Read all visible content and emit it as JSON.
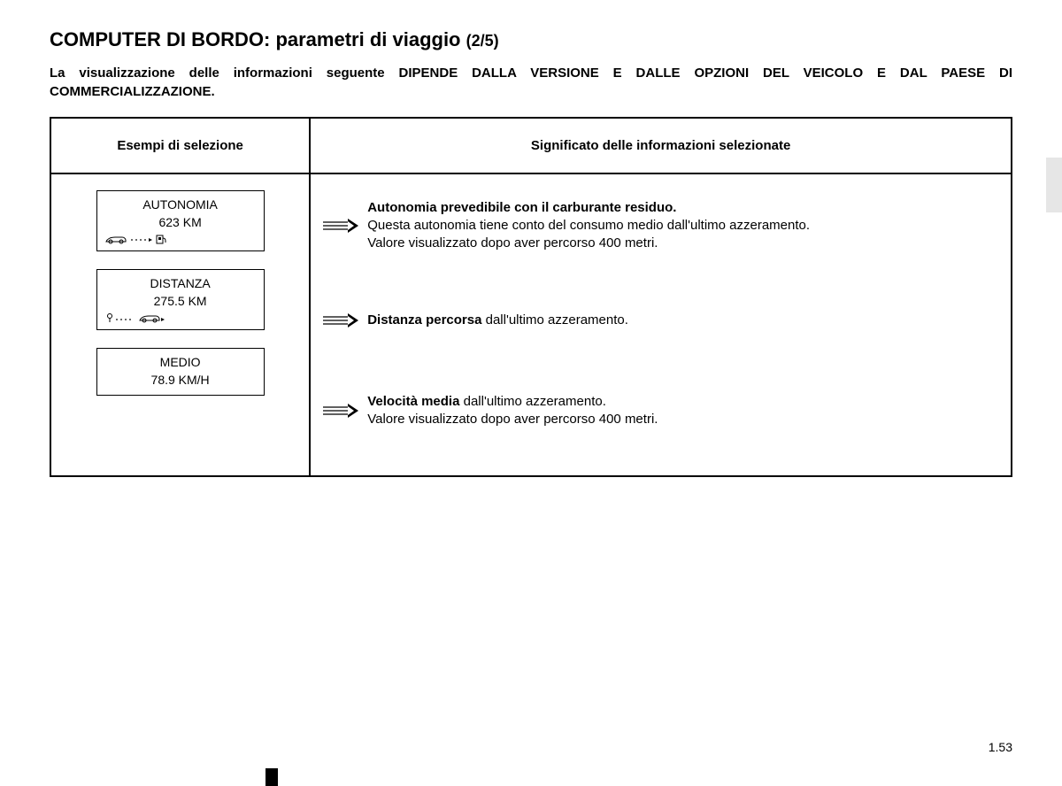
{
  "title": {
    "main": "COMPUTER DI BORDO: parametri di viaggio",
    "page_indicator": "(2/5)"
  },
  "subtitle": "La visualizzazione delle informazioni seguente DIPENDE DALLA VERSIONE E DALLE OPZIONI DEL VEICOLO E DAL PAESE DI COMMERCIALIZZAZIONE.",
  "table": {
    "header_left": "Esempi di selezione",
    "header_right": "Significato delle informazioni selezionate",
    "rows": [
      {
        "selection": {
          "label": "AUTONOMIA",
          "value": "623 KM",
          "icon": "car-to-pump"
        },
        "meaning_bold": "Autonomia prevedibile con il carburante residuo.",
        "meaning_rest": "Questa autonomia tiene conto del consumo medio dall'ultimo azzeramento.\nValore visualizzato dopo aver percorso 400 metri."
      },
      {
        "selection": {
          "label": "DISTANZA",
          "value": "275.5 KM",
          "icon": "pin-to-car"
        },
        "meaning_bold": "Distanza percorsa",
        "meaning_rest": " dall'ultimo azzeramento."
      },
      {
        "selection": {
          "label": "MEDIO",
          "value": "78.9 KM/H",
          "icon": ""
        },
        "meaning_bold": "Velocità media",
        "meaning_rest": " dall'ultimo azzeramento.\nValore visualizzato dopo aver percorso 400 metri."
      }
    ]
  },
  "page_number": "1.53",
  "colors": {
    "text": "#000000",
    "bg": "#ffffff",
    "side_tab": "#e6e6e6"
  }
}
